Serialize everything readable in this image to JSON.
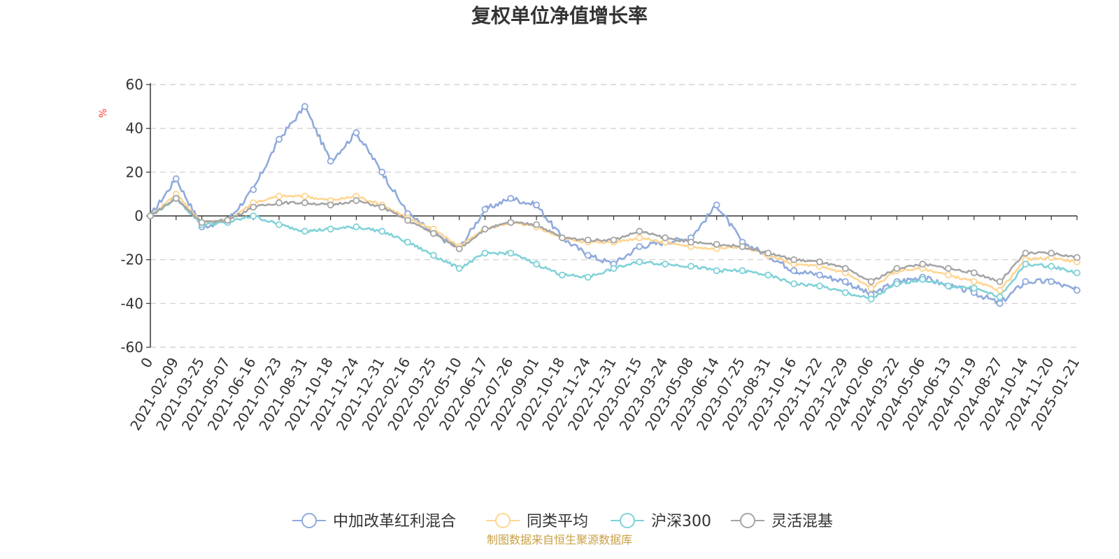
{
  "chart_data": {
    "type": "line",
    "title": "复权单位净值增长率",
    "ylabel": "%",
    "ylim": [
      -60,
      60
    ],
    "yticks": [
      60,
      40,
      20,
      0,
      -20,
      -40,
      -60
    ],
    "grid": true,
    "legend_position": "bottom",
    "source": "制图数据来自恒生聚源数据库",
    "x": [
      "0",
      "2021-02-09",
      "2021-03-25",
      "2021-05-07",
      "2021-06-16",
      "2021-07-23",
      "2021-08-31",
      "2021-10-18",
      "2021-11-24",
      "2021-12-31",
      "2022-02-16",
      "2022-03-25",
      "2022-05-10",
      "2022-06-17",
      "2022-07-26",
      "2022-09-01",
      "2022-10-18",
      "2022-11-24",
      "2022-12-31",
      "2023-02-15",
      "2023-03-24",
      "2023-05-08",
      "2023-06-14",
      "2023-07-25",
      "2023-08-31",
      "2023-10-16",
      "2023-11-22",
      "2023-12-29",
      "2024-02-06",
      "2024-03-22",
      "2024-05-06",
      "2024-06-13",
      "2024-07-19",
      "2024-08-27",
      "2024-10-14",
      "2024-11-20",
      "2025-01-21"
    ],
    "series": [
      {
        "name": "中加改革红利混合",
        "color": "#8faadc",
        "values": [
          0,
          17,
          -5,
          -2,
          12,
          35,
          50,
          25,
          38,
          20,
          1,
          -8,
          -15,
          3,
          8,
          5,
          -10,
          -18,
          -22,
          -14,
          -12,
          -10,
          5,
          -12,
          -18,
          -25,
          -27,
          -30,
          -36,
          -30,
          -28,
          -32,
          -35,
          -40,
          -30,
          -30,
          -34
        ]
      },
      {
        "name": "同类平均",
        "color": "#ffd591",
        "values": [
          0,
          10,
          -3,
          -2,
          6,
          9,
          9,
          7,
          9,
          5,
          -1,
          -6,
          -14,
          -6,
          -3,
          -5,
          -10,
          -12,
          -12,
          -10,
          -12,
          -14,
          -15,
          -14,
          -18,
          -22,
          -23,
          -26,
          -33,
          -25,
          -24,
          -27,
          -30,
          -34,
          -20,
          -19,
          -21
        ]
      },
      {
        "name": "沪深300",
        "color": "#7fd2d8",
        "values": [
          0,
          8,
          -4,
          -3,
          0,
          -4,
          -7,
          -6,
          -5,
          -7,
          -12,
          -18,
          -24,
          -17,
          -17,
          -22,
          -27,
          -28,
          -24,
          -21,
          -22,
          -23,
          -25,
          -25,
          -27,
          -31,
          -32,
          -35,
          -38,
          -31,
          -29,
          -32,
          -33,
          -37,
          -22,
          -23,
          -26
        ]
      },
      {
        "name": "灵活混基",
        "color": "#a5a5a5",
        "values": [
          0,
          8,
          -3,
          -2,
          4,
          6,
          6,
          5,
          7,
          4,
          -2,
          -8,
          -15,
          -6,
          -3,
          -4,
          -10,
          -11,
          -11,
          -7,
          -10,
          -12,
          -13,
          -14,
          -17,
          -20,
          -21,
          -24,
          -30,
          -24,
          -22,
          -24,
          -26,
          -30,
          -17,
          -17,
          -19
        ]
      }
    ]
  }
}
